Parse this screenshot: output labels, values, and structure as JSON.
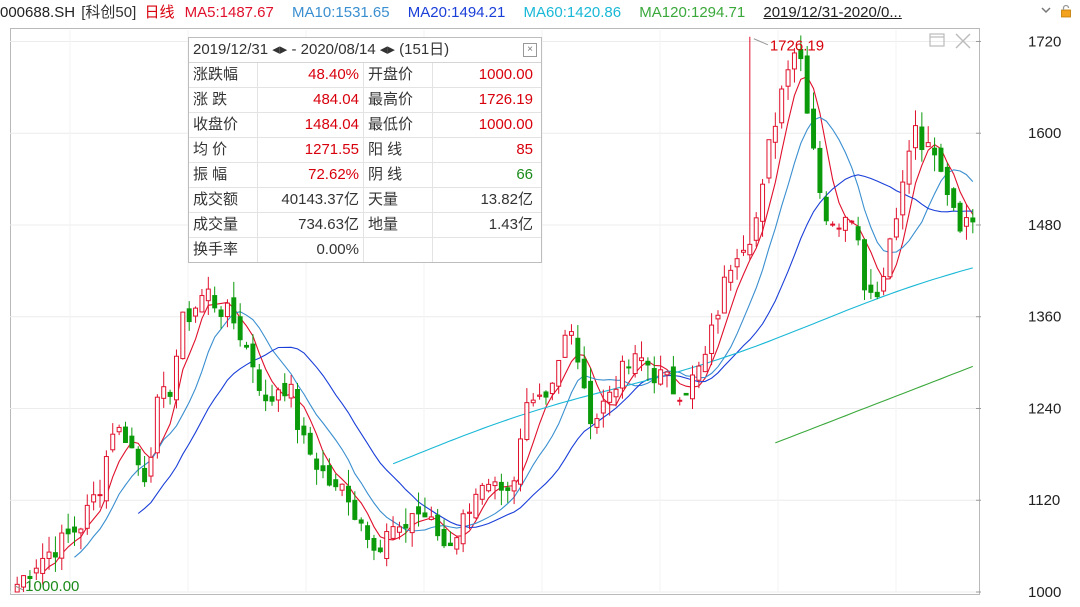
{
  "header": {
    "code": "000688.SH",
    "index_name": "[科创50]",
    "period": "日线",
    "ma": [
      {
        "label": "MA5:1487.67",
        "color": "#e0102c"
      },
      {
        "label": "MA10:1531.65",
        "color": "#3a8fd0"
      },
      {
        "label": "MA20:1494.21",
        "color": "#1a3fd8"
      },
      {
        "label": "MA60:1420.86",
        "color": "#19b8d6"
      },
      {
        "label": "MA120:1294.71",
        "color": "#3aa83a"
      }
    ],
    "date_range": "2019/12/31-2020/0...",
    "icons": [
      "chevron-down-icon",
      "lock-icon"
    ]
  },
  "summary": {
    "start_date": "2019/12/31",
    "end_date": "2020/08/14",
    "arrow": "◂▸",
    "dash": "-",
    "days": "(151日)",
    "rows": [
      {
        "l1": "涨跌幅",
        "v1": "48.40%",
        "c1": "#d8000c",
        "l2": "开盘价",
        "v2": "1000.00",
        "c2": "#d8000c"
      },
      {
        "l1": "涨 跌",
        "v1": "484.04",
        "c1": "#d8000c",
        "l2": "最高价",
        "v2": "1726.19",
        "c2": "#d8000c"
      },
      {
        "l1": "收盘价",
        "v1": "1484.04",
        "c1": "#d8000c",
        "l2": "最低价",
        "v2": "1000.00",
        "c2": "#d8000c"
      },
      {
        "l1": "均 价",
        "v1": "1271.55",
        "c1": "#d8000c",
        "l2": "阳 线",
        "v2": "85",
        "c2": "#d8000c"
      },
      {
        "l1": "振 幅",
        "v1": "72.62%",
        "c1": "#d8000c",
        "l2": "阴 线",
        "v2": "66",
        "c2": "#1a8a1a"
      },
      {
        "l1": "成交额",
        "v1": "40143.37亿",
        "c1": "#333333",
        "l2": "天量",
        "v2": "13.82亿",
        "c2": "#333333"
      },
      {
        "l1": "成交量",
        "v1": "734.63亿",
        "c1": "#333333",
        "l2": "地量",
        "v2": "1.43亿",
        "c2": "#333333"
      },
      {
        "l1": "换手率",
        "v1": "0.00%",
        "c1": "#333333",
        "l2": "",
        "v2": "",
        "c2": "#333333"
      }
    ]
  },
  "chart_data": {
    "type": "candlestick",
    "y_ticks": [
      1000,
      1120,
      1240,
      1360,
      1480,
      1600,
      1720
    ],
    "y_tick_labels": [
      "1000",
      "1120",
      "1240",
      "1360",
      "1480",
      "1600",
      "1720"
    ],
    "ylim": [
      1000,
      1735
    ],
    "n_bars": 151,
    "high_annotation": {
      "label": "1726.19",
      "value": 1726.19,
      "bar": 115
    },
    "low_annotation": {
      "label": "1000.00",
      "value": 1000.0,
      "bar": 0
    },
    "up_color": "#e0102c",
    "down_color": "#0a9a0a",
    "ohlc": [],
    "ma_lines": {
      "MA5": {
        "color": "#e0102c",
        "values": []
      },
      "MA10": {
        "color": "#3a8fd0",
        "values": []
      },
      "MA20": {
        "color": "#1a3fd8",
        "values": []
      },
      "MA60": {
        "color": "#19b8d6",
        "values": []
      },
      "MA120": {
        "color": "#3aa83a",
        "values": []
      }
    },
    "close_path": [
      [
        0,
        1010
      ],
      [
        4,
        1040
      ],
      [
        8,
        1060
      ],
      [
        13,
        1090
      ],
      [
        17,
        1145
      ],
      [
        19,
        1215
      ],
      [
        22,
        1205
      ],
      [
        24,
        1170
      ],
      [
        26,
        1150
      ],
      [
        28,
        1240
      ],
      [
        31,
        1270
      ],
      [
        33,
        1350
      ],
      [
        36,
        1375
      ],
      [
        38,
        1395
      ],
      [
        40,
        1375
      ],
      [
        42,
        1365
      ],
      [
        44,
        1350
      ],
      [
        46,
        1320
      ],
      [
        48,
        1290
      ],
      [
        50,
        1240
      ],
      [
        53,
        1275
      ],
      [
        55,
        1260
      ],
      [
        57,
        1200
      ],
      [
        60,
        1170
      ],
      [
        62,
        1150
      ],
      [
        64,
        1130
      ],
      [
        66,
        1140
      ],
      [
        68,
        1100
      ],
      [
        70,
        1085
      ],
      [
        73,
        1055
      ],
      [
        75,
        1085
      ],
      [
        77,
        1070
      ],
      [
        79,
        1105
      ],
      [
        82,
        1100
      ],
      [
        84,
        1080
      ],
      [
        86,
        1060
      ],
      [
        88,
        1075
      ],
      [
        90,
        1100
      ],
      [
        92,
        1135
      ],
      [
        94,
        1130
      ],
      [
        96,
        1130
      ],
      [
        98,
        1115
      ],
      [
        100,
        1140
      ],
      [
        102,
        1240
      ],
      [
        104,
        1270
      ],
      [
        106,
        1255
      ],
      [
        108,
        1290
      ],
      [
        110,
        1330
      ],
      [
        112,
        1335
      ],
      [
        114,
        1250
      ],
      [
        116,
        1225
      ],
      [
        118,
        1250
      ],
      [
        120,
        1275
      ],
      [
        122,
        1290
      ],
      [
        124,
        1300
      ],
      [
        126,
        1305
      ],
      [
        128,
        1285
      ],
      [
        130,
        1280
      ],
      [
        132,
        1265
      ],
      [
        134,
        1265
      ],
      [
        136,
        1280
      ],
      [
        138,
        1300
      ],
      [
        140,
        1350
      ],
      [
        142,
        1400
      ],
      [
        144,
        1445
      ],
      [
        146,
        1460
      ],
      [
        148,
        1475
      ],
      [
        150,
        1530
      ],
      [
        151,
        1580
      ],
      [
        153,
        1640
      ],
      [
        155,
        1700
      ],
      [
        157,
        1720
      ],
      [
        158,
        1670
      ],
      [
        160,
        1585
      ],
      [
        162,
        1500
      ],
      [
        164,
        1470
      ],
      [
        166,
        1500
      ],
      [
        168,
        1500
      ],
      [
        170,
        1410
      ],
      [
        172,
        1390
      ],
      [
        174,
        1410
      ],
      [
        176,
        1490
      ],
      [
        178,
        1530
      ],
      [
        180,
        1610
      ],
      [
        182,
        1580
      ],
      [
        184,
        1570
      ],
      [
        186,
        1540
      ],
      [
        188,
        1510
      ],
      [
        190,
        1475
      ],
      [
        192,
        1484
      ]
    ]
  }
}
